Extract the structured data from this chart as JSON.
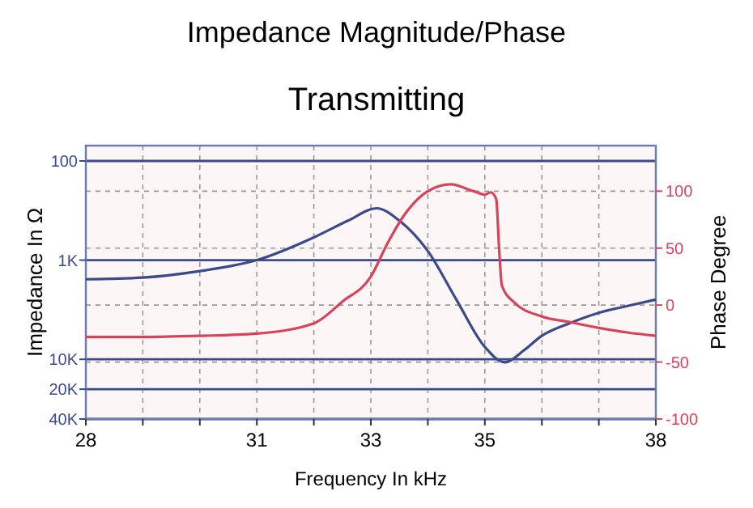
{
  "chart_data": {
    "type": "line",
    "title": "Impedance Magnitude/Phase",
    "subtitle": "Transmitting",
    "xlabel": "Frequency In kHz",
    "ylabel": "Impedance In Ω",
    "y2label": "Phase Degree",
    "xlim": [
      28,
      38
    ],
    "xticks": [
      28,
      {
        "value": 29,
        "label": null
      },
      {
        "value": 30,
        "label": null
      },
      31,
      {
        "value": 32,
        "label": null
      },
      33,
      {
        "value": 34,
        "label": null
      },
      35,
      {
        "value": 36,
        "label": null
      },
      {
        "value": 37,
        "label": null
      },
      38
    ],
    "log": "y",
    "ylim": [
      40000,
      70
    ],
    "yticks": [
      100,
      {
        "value": 1000,
        "label": "1K"
      },
      {
        "value": 10000,
        "label": "10K"
      },
      {
        "value": 20000,
        "label": "20K"
      },
      {
        "value": 40000,
        "label": "40K"
      }
    ],
    "y2lim": [
      -100,
      140
    ],
    "y2ticks": [
      -100,
      -50,
      0,
      50,
      100
    ],
    "grid": true,
    "line_style": "solid",
    "marker": "none",
    "series": [
      {
        "color": "#3b4a8a",
        "axis": "y",
        "x": [
          28,
          29,
          30,
          31,
          32,
          32.6,
          33.1,
          33.5,
          34,
          34.5,
          35,
          35.35,
          35.7,
          36,
          36.5,
          37,
          37.5,
          38
        ],
        "values": [
          1560,
          1500,
          1290,
          1000,
          590,
          400,
          300,
          400,
          810,
          2500,
          7500,
          10700,
          8000,
          5800,
          4300,
          3400,
          2900,
          2500
        ]
      },
      {
        "color": "#d9435a",
        "axis": "y2",
        "x": [
          28,
          29,
          30,
          31,
          32,
          32.5,
          33,
          33.3,
          33.6,
          34,
          34.4,
          34.8,
          35,
          35.1,
          35.2,
          35.25,
          35.3,
          35.5,
          36,
          36.5,
          37,
          37.5,
          38
        ],
        "values": [
          -28,
          -28,
          -27,
          -25,
          -16,
          3,
          25,
          55,
          80,
          100,
          106,
          100,
          97,
          99,
          93,
          50,
          17,
          3,
          -10,
          -15,
          -20,
          -24,
          -27
        ]
      }
    ]
  }
}
